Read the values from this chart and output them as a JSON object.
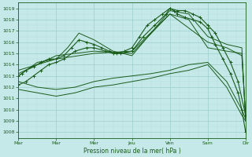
{
  "xlabel": "Pression niveau de la mer( hPa )",
  "bg_color": "#c5e8e8",
  "grid_color_major": "#9ecece",
  "grid_color_minor": "#b8dede",
  "line_color": "#1a5c1a",
  "ylim": [
    1007.5,
    1019.5
  ],
  "yticks": [
    1008,
    1009,
    1010,
    1011,
    1012,
    1013,
    1014,
    1015,
    1016,
    1017,
    1018,
    1019
  ],
  "xtick_positions": [
    0,
    1,
    2,
    3,
    4,
    5,
    6
  ],
  "xtick_labels": [
    "Mar",
    "Mar",
    "Mer",
    "Jeu",
    "Ven",
    "Sam",
    "Dir"
  ],
  "lines": [
    {
      "x": [
        0.0,
        0.1,
        0.2,
        0.4,
        0.6,
        0.8,
        1.0,
        1.2,
        1.4,
        1.6,
        1.8,
        2.0,
        2.2,
        2.4,
        2.6,
        2.8,
        3.0,
        3.2,
        3.4,
        3.6,
        3.8,
        4.0,
        4.1,
        4.2,
        4.4,
        4.6,
        4.8,
        5.0,
        5.1,
        5.2,
        5.4,
        5.6,
        5.8,
        5.9,
        6.0
      ],
      "y": [
        1013.0,
        1013.2,
        1013.5,
        1013.8,
        1014.2,
        1014.5,
        1014.5,
        1014.8,
        1015.5,
        1016.2,
        1016.0,
        1015.8,
        1015.5,
        1015.2,
        1015.0,
        1015.2,
        1015.5,
        1016.5,
        1017.5,
        1018.0,
        1018.5,
        1019.0,
        1018.8,
        1018.5,
        1018.2,
        1018.0,
        1017.8,
        1017.2,
        1016.5,
        1015.8,
        1014.5,
        1013.2,
        1011.5,
        1010.0,
        1008.0
      ],
      "marker": true,
      "lw": 0.8
    },
    {
      "x": [
        0.0,
        0.2,
        0.4,
        0.6,
        0.8,
        1.0,
        1.2,
        1.5,
        1.8,
        2.0,
        2.3,
        2.5,
        2.7,
        3.0,
        3.3,
        3.6,
        3.9,
        4.0,
        4.2,
        4.4,
        4.6,
        4.8,
        5.0,
        5.2,
        5.4,
        5.6,
        5.8,
        6.0
      ],
      "y": [
        1012.2,
        1012.5,
        1013.0,
        1013.5,
        1014.0,
        1014.2,
        1014.5,
        1015.2,
        1015.5,
        1015.5,
        1015.2,
        1015.0,
        1015.0,
        1015.2,
        1016.5,
        1017.5,
        1018.5,
        1019.0,
        1018.8,
        1018.8,
        1018.5,
        1018.2,
        1017.5,
        1016.8,
        1015.5,
        1014.2,
        1012.5,
        1009.5
      ],
      "marker": true,
      "lw": 0.8
    },
    {
      "x": [
        0.0,
        0.5,
        1.0,
        1.3,
        1.6,
        2.0,
        2.5,
        3.0,
        3.5,
        4.0,
        4.5,
        5.0,
        5.5,
        5.9,
        6.0
      ],
      "y": [
        1013.0,
        1014.2,
        1014.5,
        1015.5,
        1016.8,
        1016.2,
        1015.2,
        1014.8,
        1016.8,
        1018.8,
        1018.5,
        1016.5,
        1015.8,
        1015.5,
        1009.0
      ],
      "marker": false,
      "lw": 0.7
    },
    {
      "x": [
        0.0,
        0.5,
        1.0,
        2.0,
        3.0,
        4.0,
        4.5,
        5.0,
        5.5,
        5.9,
        6.0
      ],
      "y": [
        1013.2,
        1014.0,
        1014.5,
        1015.0,
        1015.2,
        1018.5,
        1018.0,
        1015.5,
        1015.2,
        1015.0,
        1009.2
      ],
      "marker": false,
      "lw": 0.7
    },
    {
      "x": [
        0.0,
        0.5,
        1.0,
        2.0,
        3.0,
        4.0,
        5.0,
        5.5,
        5.9,
        6.0
      ],
      "y": [
        1013.5,
        1014.0,
        1014.8,
        1015.2,
        1015.0,
        1018.5,
        1016.0,
        1015.5,
        1014.8,
        1009.5
      ],
      "marker": false,
      "lw": 0.7
    },
    {
      "x": [
        0.0,
        0.5,
        1.0,
        1.5,
        2.0,
        2.5,
        3.0,
        3.5,
        4.0,
        4.5,
        5.0,
        5.5,
        5.9,
        6.0
      ],
      "y": [
        1012.5,
        1012.0,
        1011.8,
        1012.0,
        1012.5,
        1012.8,
        1013.0,
        1013.2,
        1013.5,
        1014.0,
        1014.2,
        1012.5,
        1010.0,
        1009.2
      ],
      "marker": false,
      "lw": 0.7
    },
    {
      "x": [
        0.0,
        0.5,
        1.0,
        1.5,
        2.0,
        2.5,
        3.0,
        3.5,
        4.0,
        4.5,
        5.0,
        5.5,
        5.9,
        6.0
      ],
      "y": [
        1011.8,
        1011.5,
        1011.2,
        1011.5,
        1012.0,
        1012.2,
        1012.5,
        1012.8,
        1013.2,
        1013.5,
        1014.0,
        1012.0,
        1009.5,
        1009.0
      ],
      "marker": false,
      "lw": 0.7
    }
  ]
}
